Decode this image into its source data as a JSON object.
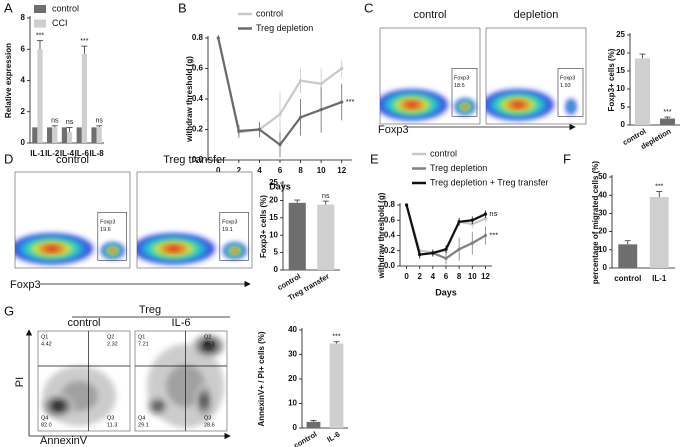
{
  "panel_labels": [
    "A",
    "B",
    "C",
    "D",
    "E",
    "F",
    "G"
  ],
  "chart_data": [
    {
      "type": "bar",
      "y_label": "Relative expression",
      "legend": true,
      "categories": [
        "IL-1",
        "IL-2",
        "IL-4",
        "IL-6",
        "IL-8"
      ],
      "series": [
        {
          "name": "control",
          "color": "#6e6e6e",
          "values": [
            1,
            1,
            1,
            1,
            1
          ]
        },
        {
          "name": "CCI",
          "color": "#cfcfcf",
          "values": [
            6,
            1,
            0.7,
            5.7,
            1
          ],
          "errors": [
            0.55,
            0.1,
            0.3,
            0.5,
            0.1
          ],
          "annotations": [
            "***",
            "ns",
            "ns",
            "***",
            "ns"
          ]
        }
      ],
      "ylim": [
        0,
        8
      ],
      "yticks": [
        0,
        2,
        4,
        6,
        8
      ]
    },
    {
      "type": "line",
      "x_label": "Days",
      "y_label": "withdraw threshold (g)",
      "legend": true,
      "x": [
        0,
        2,
        4,
        6,
        8,
        10,
        12
      ],
      "series": [
        {
          "name": "control",
          "color": "#c8c8c8",
          "values": [
            0.8,
            0.18,
            0.2,
            0.3,
            0.52,
            0.5,
            0.6
          ],
          "errors": [
            0.02,
            0.04,
            0.05,
            0.15,
            0.08,
            0.1,
            0.06
          ]
        },
        {
          "name": "Treg depletion",
          "color": "#6a6a6a",
          "values": [
            0.8,
            0.19,
            0.2,
            0.1,
            0.28,
            0.33,
            0.38
          ],
          "errors": [
            0.02,
            0.04,
            0.05,
            0.08,
            0.12,
            0.15,
            0.12
          ],
          "annotation": "***"
        }
      ],
      "xlim": [
        -1,
        13
      ],
      "xticks": [
        0,
        2,
        4,
        6,
        8,
        10,
        12
      ],
      "ylim": [
        0,
        0.8
      ],
      "yticks": [
        {
          "value": 0,
          "label": "0.0"
        },
        {
          "value": 0.2,
          "label": "0.2"
        },
        {
          "value": 0.4,
          "label": "0.4"
        },
        {
          "value": 0.6,
          "label": "0.6"
        },
        {
          "value": 0.8,
          "label": "0.8"
        }
      ]
    },
    {
      "type": "bar",
      "y_label": "Foxp3+ cells (%)",
      "categories": [
        "control",
        "depletion"
      ],
      "values": [
        18.5,
        1.8
      ],
      "errors": [
        1.2,
        0.4
      ],
      "colors": [
        "#cfcfcf",
        "#6e6e6e"
      ],
      "annotations": [
        null,
        "***"
      ],
      "ylim": [
        0,
        25
      ],
      "yticks": [
        0,
        5,
        10,
        15,
        20,
        25
      ]
    },
    {
      "type": "bar",
      "y_label": "Foxp3+ cells (%)",
      "categories": [
        "control",
        "Treg transfer"
      ],
      "values": [
        19.3,
        18.8
      ],
      "errors": [
        0.8,
        1.0
      ],
      "colors": [
        "#6e6e6e",
        "#cfcfcf"
      ],
      "annotations": [
        null,
        "ns"
      ],
      "ylim": [
        0,
        25
      ],
      "yticks": [
        0,
        5,
        10,
        15,
        20,
        25
      ]
    },
    {
      "type": "line",
      "x_label": "Days",
      "y_label": "withdraw threshold (g)",
      "legend": true,
      "x": [
        0,
        2,
        4,
        6,
        8,
        10,
        12
      ],
      "series": [
        {
          "name": "control",
          "color": "#c8c8c8",
          "values": [
            0.8,
            0.2,
            0.18,
            0.2,
            0.58,
            0.55,
            0.62
          ],
          "errors": [
            0.02,
            0.05,
            0.04,
            0.06,
            0.05,
            0.06,
            0.05
          ]
        },
        {
          "name": "Treg depletion",
          "color": "#808080",
          "values": [
            0.8,
            0.15,
            0.17,
            0.1,
            0.22,
            0.3,
            0.4
          ],
          "errors": [
            0.02,
            0.05,
            0.05,
            0.08,
            0.15,
            0.15,
            0.12
          ],
          "annotation": "***"
        },
        {
          "name": "Treg depletion + Treg transfer",
          "color": "#111111",
          "values": [
            0.8,
            0.15,
            0.17,
            0.22,
            0.58,
            0.6,
            0.68
          ],
          "errors": [
            0.02,
            0.05,
            0.04,
            0.05,
            0.05,
            0.05,
            0.05
          ],
          "annotation": "ns"
        }
      ],
      "xlim": [
        -1,
        13
      ],
      "xticks": [
        0,
        2,
        4,
        6,
        8,
        10,
        12
      ],
      "ylim": [
        0,
        0.8
      ],
      "yticks": [
        {
          "value": 0,
          "label": "0.0"
        },
        {
          "value": 0.2,
          "label": "0.2"
        },
        {
          "value": 0.4,
          "label": "0.4"
        },
        {
          "value": 0.6,
          "label": "0.6"
        },
        {
          "value": 0.8,
          "label": "0.8"
        }
      ]
    },
    {
      "type": "bar",
      "y_label": "percentage of migrated cells (%)",
      "categories": [
        "control",
        "IL-1"
      ],
      "values": [
        13,
        39
      ],
      "errors": [
        2,
        3
      ],
      "colors": [
        "#6e6e6e",
        "#cfcfcf"
      ],
      "annotations": [
        null,
        "***"
      ],
      "ylim": [
        0,
        50
      ],
      "yticks": [
        0,
        10,
        20,
        30,
        40,
        50
      ]
    },
    {
      "type": "bar",
      "y_label": "AnnexinV+ / PI+ cells (%)",
      "categories": [
        "control",
        "IL-6"
      ],
      "values": [
        2.5,
        34.5
      ],
      "errors": [
        0.6,
        0.7
      ],
      "colors": [
        "#6e6e6e",
        "#cfcfcf"
      ],
      "annotations": [
        null,
        "***"
      ],
      "ylim": [
        0,
        40
      ],
      "yticks": [
        0,
        10,
        20,
        30,
        40
      ]
    }
  ],
  "flow_panels": [
    {
      "axis": "Foxp3",
      "plots": [
        {
          "title": "control",
          "gate_name": "Foxp3",
          "gate_value": "18.5"
        },
        {
          "title": "depletion",
          "gate_name": "Foxp3",
          "gate_value": "1.93"
        }
      ]
    },
    {
      "axis": "Foxp3",
      "plots": [
        {
          "title": "control",
          "gate_name": "Foxp3",
          "gate_value": "19.6"
        },
        {
          "title": "Treg transfer",
          "gate_name": "Foxp3",
          "gate_value": "19.1"
        }
      ]
    },
    {
      "group": "Treg",
      "y_axis": "PI",
      "x_axis": "AnnexinV",
      "plots": [
        {
          "title": "control",
          "quadrants": [
            {
              "name": "Q1",
              "value": "4.42"
            },
            {
              "name": "Q2",
              "value": "2.32"
            },
            {
              "name": "Q4",
              "value": "82.0"
            },
            {
              "name": "Q3",
              "value": "11.3"
            }
          ]
        },
        {
          "title": "IL-6",
          "quadrants": [
            {
              "name": "Q1",
              "value": "7.21"
            },
            {
              "name": "Q2",
              "value": "35.1"
            },
            {
              "name": "Q4",
              "value": "29.1"
            },
            {
              "name": "Q3",
              "value": "28.6"
            }
          ]
        }
      ]
    }
  ]
}
